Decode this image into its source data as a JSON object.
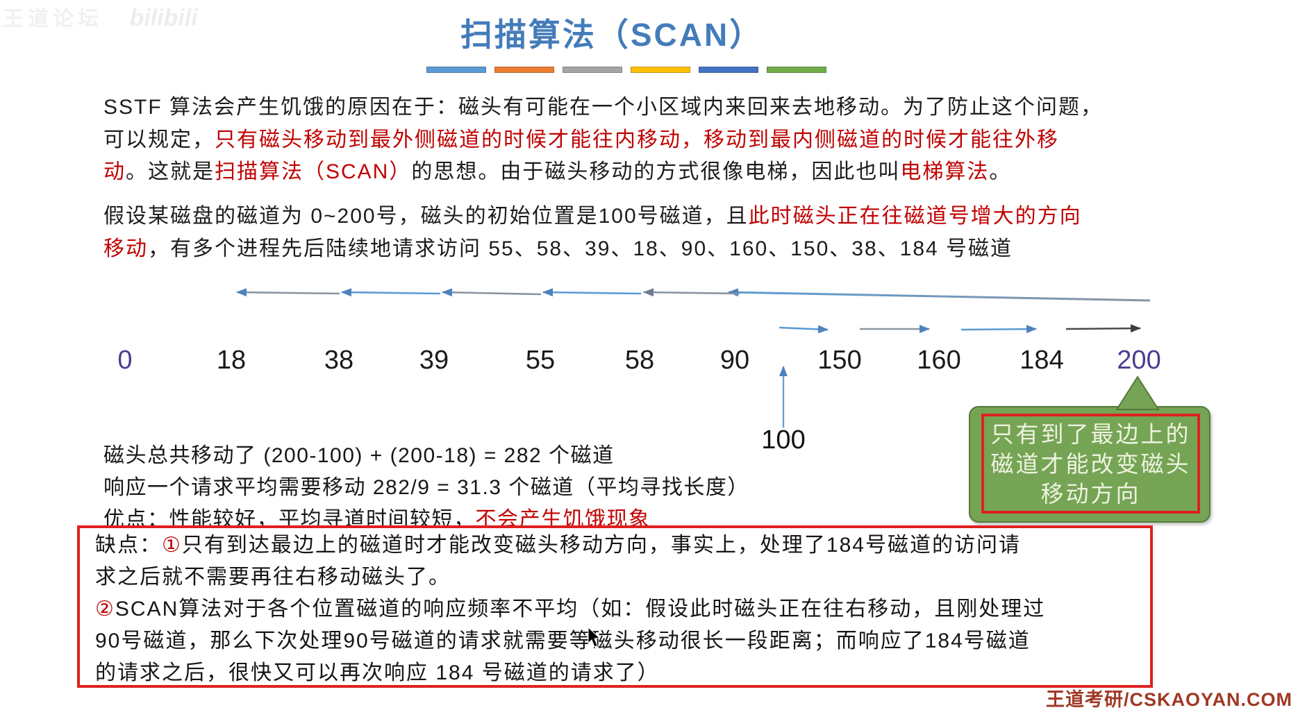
{
  "watermark_top": {
    "brand": "王道论坛",
    "platform": "bilibili"
  },
  "title": "扫描算法（SCAN）",
  "title_bars": [
    "#5b9bd5",
    "#ed7d31",
    "#a5a5a5",
    "#ffc000",
    "#4472c4",
    "#70ad47"
  ],
  "paragraph1": {
    "line1": "SSTF 算法会产生饥饿的原因在于：磁头有可能在一个小区域内来回来去地移动。为了防止这个问题，",
    "line2_black": "可以规定，",
    "line2_red": "只有磁头移动到最外侧磁道的时候才能往内移动，移动到最内侧磁道的时候才能往外移",
    "line3_red1": "动",
    "line3_black1": "。这就是",
    "line3_red2": "扫描算法（SCAN）",
    "line3_black2": "的思想。由于磁头移动的方式很像电梯，因此也叫",
    "line3_red3": "电梯算法",
    "line3_black3": "。"
  },
  "paragraph2": {
    "line1_black": "假设某磁盘的磁道为 0~200号，磁头的初始位置是100号磁道，且",
    "line1_red": "此时磁头正在往磁道号增大的方向",
    "line2_red": "移动",
    "line2_black": "，有多个进程先后陆续地请求访问 55、58、39、18、90、160、150、38、184 号磁道"
  },
  "diagram": {
    "track_labels": [
      "0",
      "18",
      "38",
      "39",
      "55",
      "58",
      "90",
      "150",
      "160",
      "184",
      "200"
    ],
    "head_start_label": "100",
    "request_sequence": "55、58、39、18、90、160、150、38、184",
    "callout_lines": [
      "只有到了最边上的",
      "磁道才能改变磁头",
      "移动方向"
    ]
  },
  "stats": {
    "line1": "磁头总共移动了  (200-100) + (200-18) = 282 个磁道",
    "line2": "响应一个请求平均需要移动 282/9 = 31.3 个磁道（平均寻找长度）",
    "line3_black": "优点：性能较好，平均寻道时间较短，",
    "line3_red": "不会产生饥饿现象"
  },
  "cons_box": {
    "l1_label": "缺点：",
    "l1_marker": "①",
    "l1_rest": "只有到达最边上的磁道时才能改变磁头移动方向，事实上，处理了184号磁道的访问请",
    "l2": "求之后就不需要再往右移动磁头了。",
    "l3_marker": "②",
    "l3_rest": "SCAN算法对于各个位置磁道的响应频率不平均（如：假设此时磁头正在往右移动，且刚处理过",
    "l4": "90号磁道，那么下次处理90号磁道的请求就需要等磁头移动很长一段距离；而响应了184号磁道",
    "l5": "的请求之后，很快又可以再次响应 184 号磁道的请求了）"
  },
  "watermark_bottom": "王道考研/CSKAOYAN.COM",
  "colors": {
    "title_blue": "#447cba",
    "emphasis_red": "#c00000",
    "box_border_red": "#e02020",
    "callout_green": "#76a455",
    "endpoint_purple": "#4a3d8f",
    "watermark_red": "#a03824"
  }
}
